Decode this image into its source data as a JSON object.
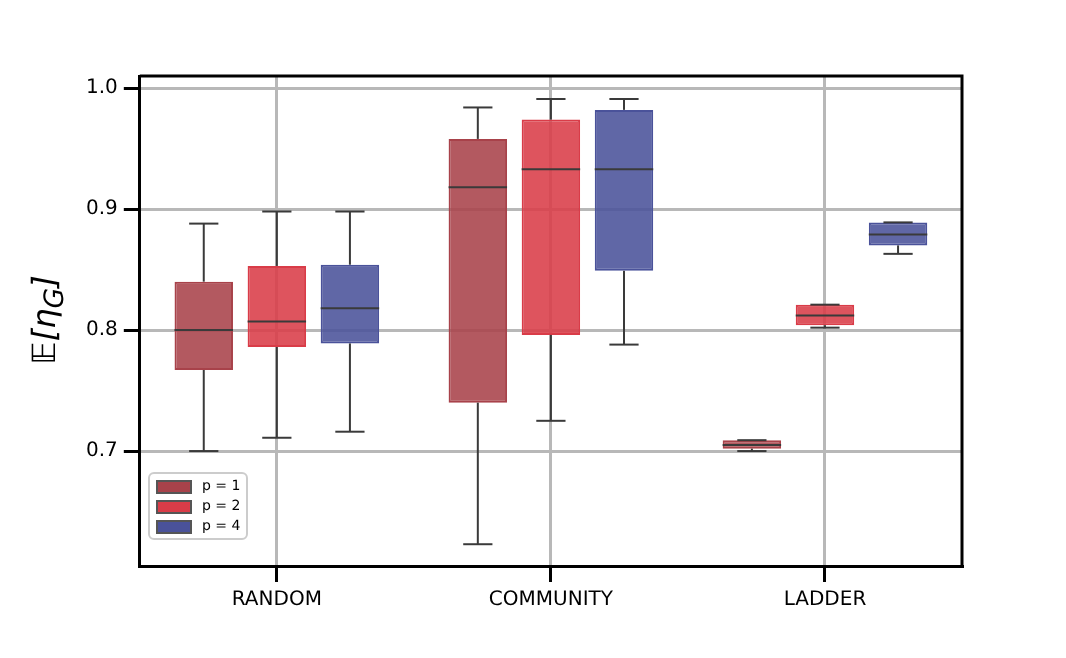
{
  "chart_data": {
    "type": "box",
    "ylabel": "𝔼[η$_{G}$]",
    "categories": [
      "RANDOM",
      "COMMUNITY",
      "LADDER"
    ],
    "series": [
      {
        "name": "p = 1",
        "color": "#a8424a",
        "boxes": [
          {
            "low": 0.7,
            "q1": 0.767,
            "median": 0.8,
            "q3": 0.84,
            "high": 0.888
          },
          {
            "low": 0.623,
            "q1": 0.74,
            "median": 0.918,
            "q3": 0.958,
            "high": 0.984
          },
          {
            "low": 0.7,
            "q1": 0.702,
            "median": 0.705,
            "q3": 0.709,
            "high": 0.709
          }
        ]
      },
      {
        "name": "p = 2",
        "color": "#d93c48",
        "boxes": [
          {
            "low": 0.711,
            "q1": 0.786,
            "median": 0.807,
            "q3": 0.853,
            "high": 0.898
          },
          {
            "low": 0.725,
            "q1": 0.796,
            "median": 0.933,
            "q3": 0.974,
            "high": 0.991
          },
          {
            "low": 0.802,
            "q1": 0.804,
            "median": 0.812,
            "q3": 0.821,
            "high": 0.821
          }
        ]
      },
      {
        "name": "p = 4",
        "color": "#4a529a",
        "boxes": [
          {
            "low": 0.716,
            "q1": 0.789,
            "median": 0.818,
            "q3": 0.854,
            "high": 0.898
          },
          {
            "low": 0.788,
            "q1": 0.849,
            "median": 0.933,
            "q3": 0.982,
            "high": 0.991
          },
          {
            "low": 0.863,
            "q1": 0.87,
            "median": 0.879,
            "q3": 0.889,
            "high": 0.889
          }
        ]
      }
    ],
    "ylim": [
      0.605,
      1.01
    ],
    "yticks": [
      0.7,
      0.8,
      0.9,
      {
        "value": 1.0,
        "label": "1.0"
      }
    ],
    "grid": true,
    "legend": "bottom left"
  }
}
